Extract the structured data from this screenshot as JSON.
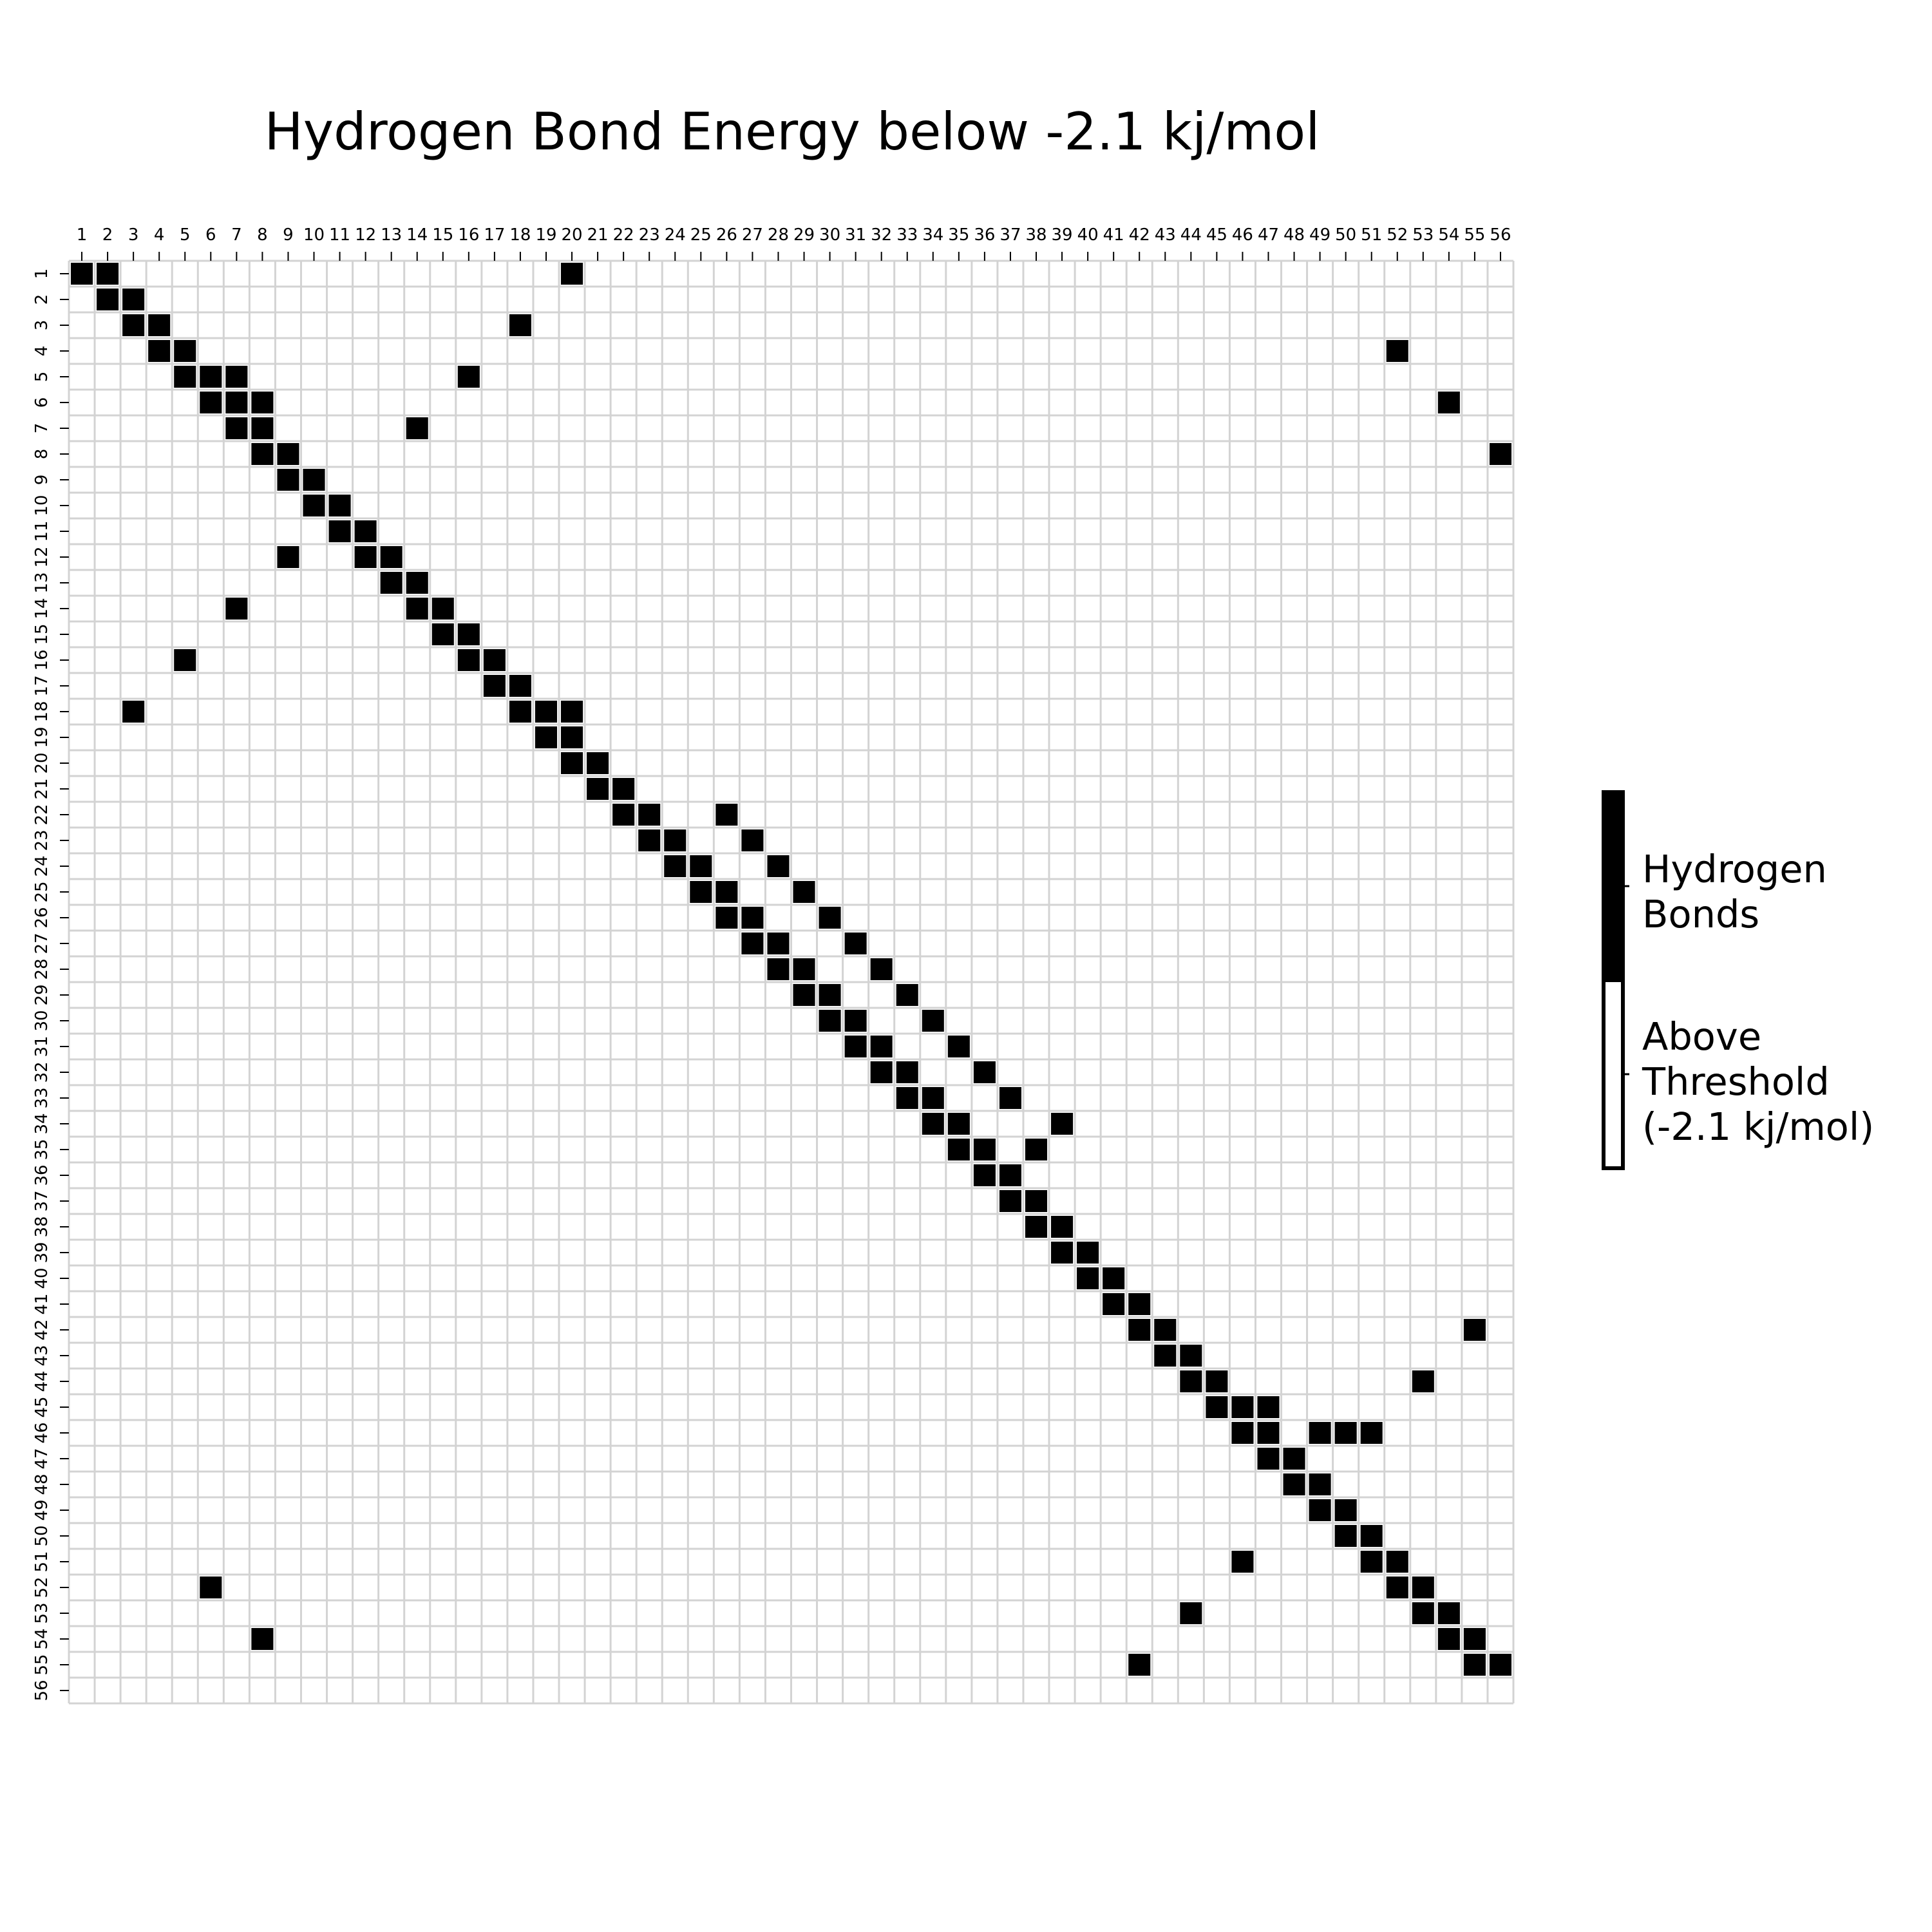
{
  "chart_data": {
    "type": "heatmap",
    "title": "Hydrogen Bond Energy below -2.1 kj/mol",
    "xlabel": "",
    "ylabel": "",
    "n": 56,
    "x_ticks": [
      "1",
      "2",
      "3",
      "4",
      "5",
      "6",
      "7",
      "8",
      "9",
      "10",
      "11",
      "12",
      "13",
      "14",
      "15",
      "16",
      "17",
      "18",
      "19",
      "20",
      "21",
      "22",
      "23",
      "24",
      "25",
      "26",
      "27",
      "28",
      "29",
      "30",
      "31",
      "32",
      "33",
      "34",
      "35",
      "36",
      "37",
      "38",
      "39",
      "40",
      "41",
      "42",
      "43",
      "44",
      "45",
      "46",
      "47",
      "48",
      "49",
      "50",
      "51",
      "52",
      "53",
      "54",
      "55",
      "56"
    ],
    "y_ticks": [
      "1",
      "2",
      "3",
      "4",
      "5",
      "6",
      "7",
      "8",
      "9",
      "10",
      "11",
      "12",
      "13",
      "14",
      "15",
      "16",
      "17",
      "18",
      "19",
      "20",
      "21",
      "22",
      "23",
      "24",
      "25",
      "26",
      "27",
      "28",
      "29",
      "30",
      "31",
      "32",
      "33",
      "34",
      "35",
      "36",
      "37",
      "38",
      "39",
      "40",
      "41",
      "42",
      "43",
      "44",
      "45",
      "46",
      "47",
      "48",
      "49",
      "50",
      "51",
      "52",
      "53",
      "54",
      "55",
      "56"
    ],
    "bonds": [
      [
        1,
        1
      ],
      [
        1,
        2
      ],
      [
        1,
        20
      ],
      [
        2,
        2
      ],
      [
        2,
        3
      ],
      [
        3,
        3
      ],
      [
        3,
        4
      ],
      [
        3,
        18
      ],
      [
        4,
        4
      ],
      [
        4,
        5
      ],
      [
        4,
        52
      ],
      [
        5,
        5
      ],
      [
        5,
        6
      ],
      [
        5,
        7
      ],
      [
        5,
        16
      ],
      [
        6,
        6
      ],
      [
        6,
        7
      ],
      [
        6,
        8
      ],
      [
        6,
        54
      ],
      [
        7,
        7
      ],
      [
        7,
        8
      ],
      [
        7,
        14
      ],
      [
        8,
        8
      ],
      [
        8,
        9
      ],
      [
        8,
        56
      ],
      [
        9,
        9
      ],
      [
        9,
        10
      ],
      [
        10,
        10
      ],
      [
        10,
        11
      ],
      [
        11,
        11
      ],
      [
        11,
        12
      ],
      [
        12,
        9
      ],
      [
        12,
        12
      ],
      [
        12,
        13
      ],
      [
        13,
        13
      ],
      [
        13,
        14
      ],
      [
        14,
        7
      ],
      [
        14,
        14
      ],
      [
        14,
        15
      ],
      [
        15,
        15
      ],
      [
        15,
        16
      ],
      [
        16,
        5
      ],
      [
        16,
        16
      ],
      [
        16,
        17
      ],
      [
        17,
        17
      ],
      [
        17,
        18
      ],
      [
        18,
        3
      ],
      [
        18,
        18
      ],
      [
        18,
        19
      ],
      [
        18,
        20
      ],
      [
        19,
        19
      ],
      [
        19,
        20
      ],
      [
        20,
        20
      ],
      [
        20,
        21
      ],
      [
        21,
        21
      ],
      [
        21,
        22
      ],
      [
        22,
        22
      ],
      [
        22,
        23
      ],
      [
        22,
        26
      ],
      [
        23,
        23
      ],
      [
        23,
        24
      ],
      [
        23,
        27
      ],
      [
        24,
        24
      ],
      [
        24,
        25
      ],
      [
        24,
        28
      ],
      [
        25,
        25
      ],
      [
        25,
        26
      ],
      [
        25,
        29
      ],
      [
        26,
        26
      ],
      [
        26,
        27
      ],
      [
        26,
        30
      ],
      [
        27,
        27
      ],
      [
        27,
        28
      ],
      [
        27,
        31
      ],
      [
        28,
        28
      ],
      [
        28,
        29
      ],
      [
        28,
        32
      ],
      [
        29,
        29
      ],
      [
        29,
        30
      ],
      [
        29,
        33
      ],
      [
        30,
        30
      ],
      [
        30,
        31
      ],
      [
        30,
        34
      ],
      [
        31,
        31
      ],
      [
        31,
        32
      ],
      [
        31,
        35
      ],
      [
        32,
        32
      ],
      [
        32,
        33
      ],
      [
        32,
        36
      ],
      [
        33,
        33
      ],
      [
        33,
        34
      ],
      [
        33,
        37
      ],
      [
        34,
        34
      ],
      [
        34,
        35
      ],
      [
        34,
        39
      ],
      [
        35,
        35
      ],
      [
        35,
        36
      ],
      [
        35,
        38
      ],
      [
        36,
        36
      ],
      [
        36,
        37
      ],
      [
        37,
        37
      ],
      [
        37,
        38
      ],
      [
        38,
        38
      ],
      [
        38,
        39
      ],
      [
        39,
        39
      ],
      [
        39,
        40
      ],
      [
        40,
        40
      ],
      [
        40,
        41
      ],
      [
        41,
        41
      ],
      [
        41,
        42
      ],
      [
        42,
        42
      ],
      [
        42,
        43
      ],
      [
        42,
        55
      ],
      [
        43,
        43
      ],
      [
        43,
        44
      ],
      [
        44,
        44
      ],
      [
        44,
        45
      ],
      [
        44,
        53
      ],
      [
        45,
        45
      ],
      [
        45,
        46
      ],
      [
        45,
        47
      ],
      [
        46,
        46
      ],
      [
        46,
        47
      ],
      [
        46,
        49
      ],
      [
        46,
        50
      ],
      [
        46,
        51
      ],
      [
        47,
        47
      ],
      [
        47,
        48
      ],
      [
        48,
        48
      ],
      [
        48,
        49
      ],
      [
        49,
        49
      ],
      [
        49,
        50
      ],
      [
        50,
        50
      ],
      [
        50,
        51
      ],
      [
        51,
        46
      ],
      [
        51,
        51
      ],
      [
        51,
        52
      ],
      [
        52,
        6
      ],
      [
        52,
        52
      ],
      [
        52,
        53
      ],
      [
        53,
        44
      ],
      [
        53,
        53
      ],
      [
        53,
        54
      ],
      [
        54,
        8
      ],
      [
        54,
        54
      ],
      [
        54,
        55
      ],
      [
        55,
        42
      ],
      [
        55,
        55
      ],
      [
        55,
        56
      ]
    ],
    "legend": [
      {
        "label": "Hydrogen Bonds",
        "color": "#000000"
      },
      {
        "label": "Above Threshold (-2.1 kj/mol)",
        "color": "#ffffff"
      }
    ],
    "colors": {
      "bond": "#000000",
      "empty": "#ffffff",
      "grid": "#d3d3d3"
    }
  },
  "legend_text": {
    "bonds_line1": "Hydrogen",
    "bonds_line2": "Bonds",
    "above_line1": "Above",
    "above_line2": "Threshold",
    "above_line3": "(-2.1 kj/mol)"
  }
}
